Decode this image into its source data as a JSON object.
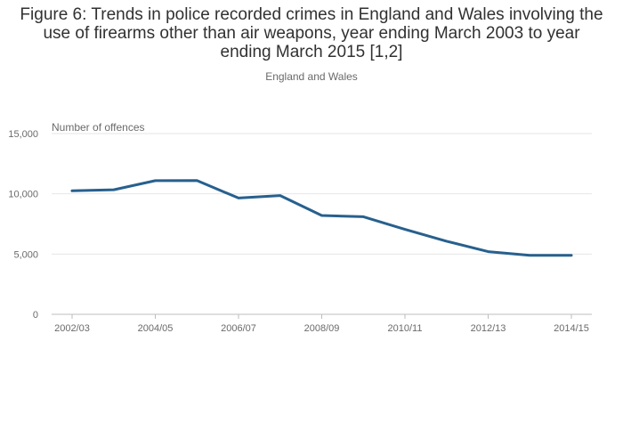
{
  "chart_data": {
    "type": "line",
    "title": "Figure 6: Trends in police recorded crimes in England and Wales involving the use of firearms other than air weapons, year ending March 2003 to year ending March 2015 [1,2]",
    "subtitle": "England and Wales",
    "ylabel": "Number of offences",
    "xlabel": "",
    "ylim": [
      0,
      15000
    ],
    "y_ticks": [
      0,
      5000,
      10000,
      15000
    ],
    "y_tick_labels": [
      "0",
      "5,000",
      "10,000",
      "15,000"
    ],
    "x": [
      "2002/03",
      "2003/04",
      "2004/05",
      "2005/06",
      "2006/07",
      "2007/08",
      "2008/09",
      "2009/10",
      "2010/11",
      "2011/12",
      "2012/13",
      "2013/14",
      "2014/15"
    ],
    "x_tick_labels": [
      "2002/03",
      "2004/05",
      "2006/07",
      "2008/09",
      "2010/11",
      "2012/13",
      "2014/15"
    ],
    "series": [
      {
        "name": "Offences involving firearms other than air weapons",
        "color": "#27608e",
        "values": [
          10250,
          10340,
          11090,
          11100,
          9650,
          9860,
          8200,
          8100,
          7050,
          6070,
          5200,
          4900,
          4900
        ]
      }
    ],
    "grid": true,
    "legend": "none"
  }
}
